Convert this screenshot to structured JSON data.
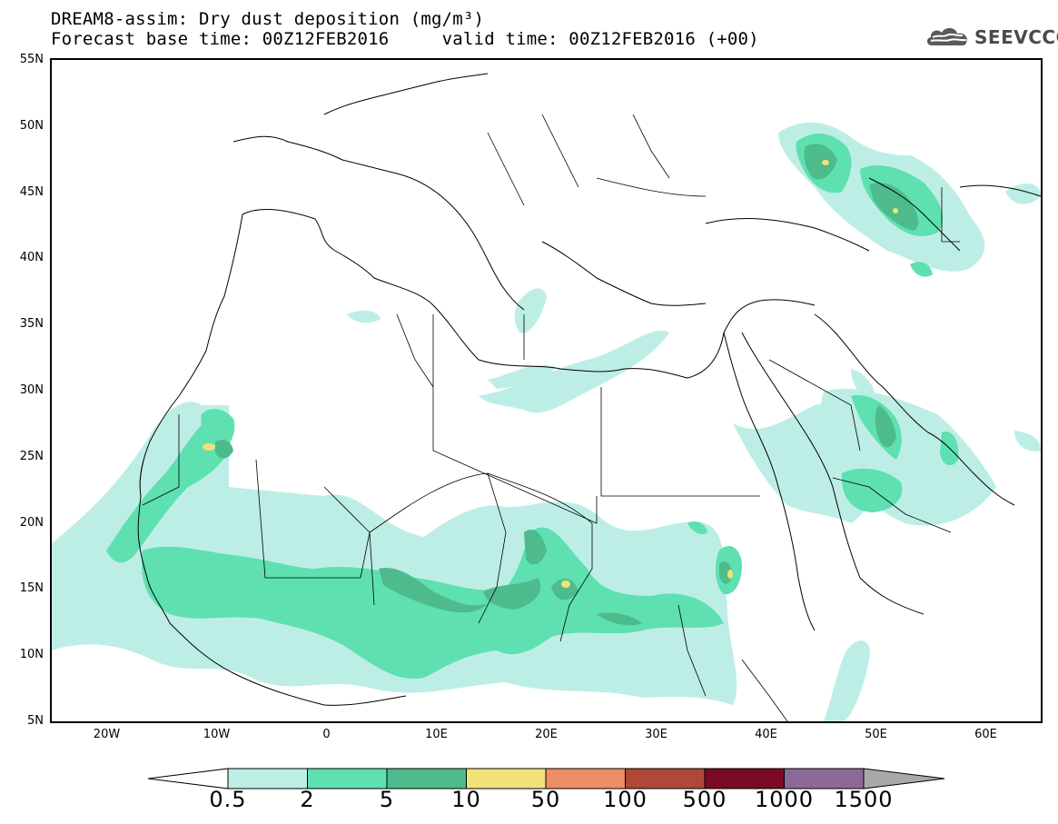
{
  "title": {
    "line1": "DREAM8-assim: Dry dust deposition (mg/m³)",
    "line2": "Forecast base time: 00Z12FEB2016     valid time: 00Z12FEB2016 (+00)"
  },
  "logo": {
    "text": "SEEVCCC",
    "icon": "cloud-icon"
  },
  "map": {
    "lat_range": [
      5,
      55
    ],
    "lon_range": [
      -25,
      65
    ],
    "lat_labels": [
      "55N",
      "50N",
      "45N",
      "40N",
      "35N",
      "30N",
      "25N",
      "20N",
      "15N",
      "10N",
      "5N"
    ],
    "lon_labels": [
      "20W",
      "10W",
      "0",
      "10E",
      "20E",
      "30E",
      "40E",
      "50E",
      "60E"
    ],
    "coastline_color": "#000000"
  },
  "legend": {
    "thresholds": [
      "0.5",
      "2",
      "5",
      "10",
      "50",
      "100",
      "500",
      "1000",
      "1500"
    ],
    "colors": [
      "#bdeee6",
      "#5ee0b0",
      "#4dbb8c",
      "#f2e27a",
      "#ec8e66",
      "#b04838",
      "#7a0a26",
      "#8c6a98"
    ],
    "under_color": "#ffffff",
    "over_color": "#a9a9a9"
  }
}
